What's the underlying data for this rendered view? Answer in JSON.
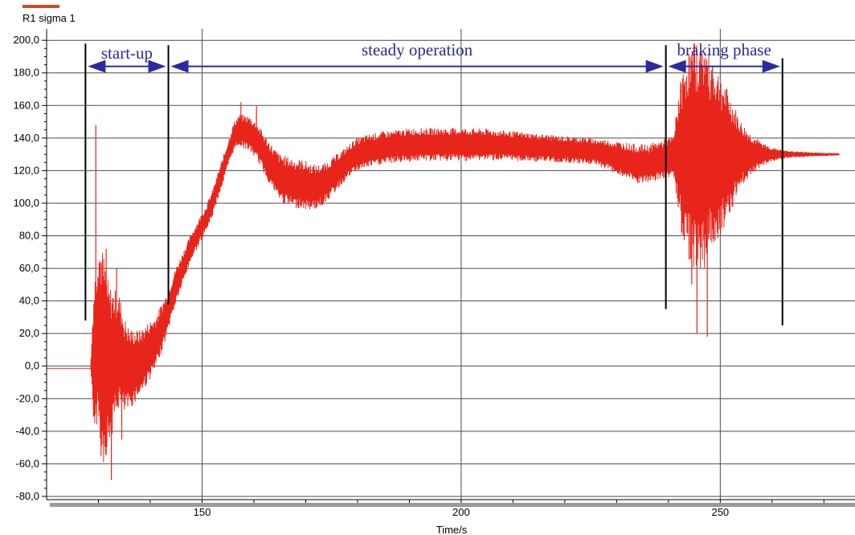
{
  "chart_data": {
    "type": "line",
    "legend": {
      "series_name": "R1 sigma 1",
      "color": "#c0502a",
      "position": "top-left"
    },
    "xlabel": "Time/s",
    "ylabel": "",
    "xlim": [
      120,
      276
    ],
    "ylim": [
      -82,
      207
    ],
    "x_ticks": [
      150,
      200,
      250
    ],
    "x_tick_labels": [
      "150",
      "200",
      "250"
    ],
    "y_ticks": [
      200,
      180,
      160,
      140,
      120,
      100,
      80,
      60,
      40,
      20,
      0,
      -20,
      -40,
      -60,
      -80
    ],
    "y_tick_labels": [
      "200,0",
      "180,0",
      "160,0",
      "140,0",
      "120,0",
      "100,0",
      "80,0",
      "60,0",
      "40,0",
      "20,0",
      "0,0",
      "-20,0",
      "-40,0",
      "-60,0",
      "-80,0"
    ],
    "grid": true,
    "series": [
      {
        "name": "R1 sigma 1",
        "color": "#e8251b",
        "points": [
          [
            120,
            -1.5
          ],
          [
            127,
            -1.5
          ],
          [
            128.5,
            -1.5
          ],
          [
            129,
            5
          ],
          [
            130,
            20
          ],
          [
            131,
            5
          ],
          [
            132,
            0
          ],
          [
            133,
            5
          ],
          [
            134,
            10
          ],
          [
            135,
            0
          ],
          [
            136,
            -2
          ],
          [
            137,
            0
          ],
          [
            138,
            2
          ],
          [
            139,
            6
          ],
          [
            140,
            10
          ],
          [
            141,
            14
          ],
          [
            142,
            22
          ],
          [
            143,
            30
          ],
          [
            144,
            40
          ],
          [
            145,
            50
          ],
          [
            146,
            58
          ],
          [
            147,
            66
          ],
          [
            148,
            74
          ],
          [
            149,
            80
          ],
          [
            150,
            86
          ],
          [
            151,
            92
          ],
          [
            152,
            100
          ],
          [
            153,
            110
          ],
          [
            154,
            120
          ],
          [
            155,
            130
          ],
          [
            156,
            140
          ],
          [
            157,
            145
          ],
          [
            158,
            144
          ],
          [
            159,
            143
          ],
          [
            160,
            140
          ],
          [
            161,
            136
          ],
          [
            162,
            130
          ],
          [
            163,
            125
          ],
          [
            164,
            120
          ],
          [
            165,
            116
          ],
          [
            166,
            114
          ],
          [
            167,
            113
          ],
          [
            168,
            112
          ],
          [
            169,
            112
          ],
          [
            170,
            111
          ],
          [
            171,
            110
          ],
          [
            172,
            110
          ],
          [
            173,
            111
          ],
          [
            174,
            113
          ],
          [
            175,
            116
          ],
          [
            176,
            119
          ],
          [
            177,
            122
          ],
          [
            178,
            125
          ],
          [
            179,
            128
          ],
          [
            180,
            130
          ],
          [
            182,
            132
          ],
          [
            185,
            134
          ],
          [
            188,
            135
          ],
          [
            191,
            136
          ],
          [
            194,
            136
          ],
          [
            197,
            136
          ],
          [
            200,
            136
          ],
          [
            205,
            136
          ],
          [
            210,
            135
          ],
          [
            215,
            134
          ],
          [
            220,
            133
          ],
          [
            225,
            132
          ],
          [
            228,
            130
          ],
          [
            230,
            128
          ],
          [
            232,
            126
          ],
          [
            234,
            124
          ],
          [
            236,
            124
          ],
          [
            238,
            126
          ],
          [
            240,
            128
          ],
          [
            242,
            130
          ],
          [
            244,
            130
          ],
          [
            246,
            129
          ],
          [
            248,
            130
          ],
          [
            250,
            130
          ],
          [
            252,
            130
          ],
          [
            254,
            130
          ],
          [
            256,
            130
          ],
          [
            258,
            130
          ],
          [
            260,
            130
          ],
          [
            265,
            130
          ],
          [
            270,
            130
          ],
          [
            273,
            130
          ]
        ],
        "oscillation_amplitude": [
          [
            120,
            0
          ],
          [
            128.5,
            0
          ],
          [
            129,
            40
          ],
          [
            130,
            60
          ],
          [
            131,
            65
          ],
          [
            132,
            50
          ],
          [
            134,
            35
          ],
          [
            136,
            25
          ],
          [
            138,
            20
          ],
          [
            140,
            18
          ],
          [
            142,
            15
          ],
          [
            144,
            12
          ],
          [
            146,
            10
          ],
          [
            148,
            8
          ],
          [
            150,
            8
          ],
          [
            155,
            8
          ],
          [
            158,
            10
          ],
          [
            162,
            12
          ],
          [
            166,
            15
          ],
          [
            170,
            15
          ],
          [
            174,
            12
          ],
          [
            178,
            10
          ],
          [
            182,
            10
          ],
          [
            190,
            10
          ],
          [
            200,
            10
          ],
          [
            210,
            9
          ],
          [
            220,
            8
          ],
          [
            226,
            8
          ],
          [
            230,
            10
          ],
          [
            234,
            12
          ],
          [
            238,
            12
          ],
          [
            241,
            12
          ],
          [
            242,
            40
          ],
          [
            243,
            55
          ],
          [
            244,
            65
          ],
          [
            245,
            70
          ],
          [
            246,
            70
          ],
          [
            247,
            70
          ],
          [
            248,
            60
          ],
          [
            250,
            50
          ],
          [
            252,
            35
          ],
          [
            254,
            20
          ],
          [
            256,
            12
          ],
          [
            258,
            7
          ],
          [
            260,
            4
          ],
          [
            263,
            2
          ],
          [
            268,
            1
          ],
          [
            273,
            0.5
          ]
        ],
        "spikes": [
          [
            129.5,
            148
          ],
          [
            130.5,
            -55
          ],
          [
            131.5,
            72
          ],
          [
            132.5,
            -70
          ],
          [
            133.5,
            60
          ],
          [
            134.5,
            -45
          ],
          [
            157.5,
            162
          ],
          [
            160.5,
            160
          ],
          [
            243.5,
            178
          ],
          [
            244.5,
            50
          ],
          [
            245.5,
            20
          ],
          [
            246.5,
            192
          ],
          [
            247.5,
            18
          ],
          [
            248.5,
            184
          ],
          [
            249.5,
            170
          ],
          [
            250.5,
            155
          ]
        ]
      }
    ],
    "phases": [
      {
        "label": "start-up",
        "start": 127.5,
        "end": 143.5
      },
      {
        "label": "steady operation",
        "start": 143.5,
        "end": 239.5
      },
      {
        "label": "braking phase",
        "start": 239.5,
        "end": 262
      }
    ],
    "phase_markers": [
      {
        "x": 127.5,
        "y_top": 198,
        "y_bottom": 28
      },
      {
        "x": 143.5,
        "y_top": 197,
        "y_bottom": 38
      },
      {
        "x": 239.5,
        "y_top": 197,
        "y_bottom": 35
      },
      {
        "x": 262,
        "y_top": 189,
        "y_bottom": 25
      }
    ],
    "phase_arrow_y": 184
  }
}
